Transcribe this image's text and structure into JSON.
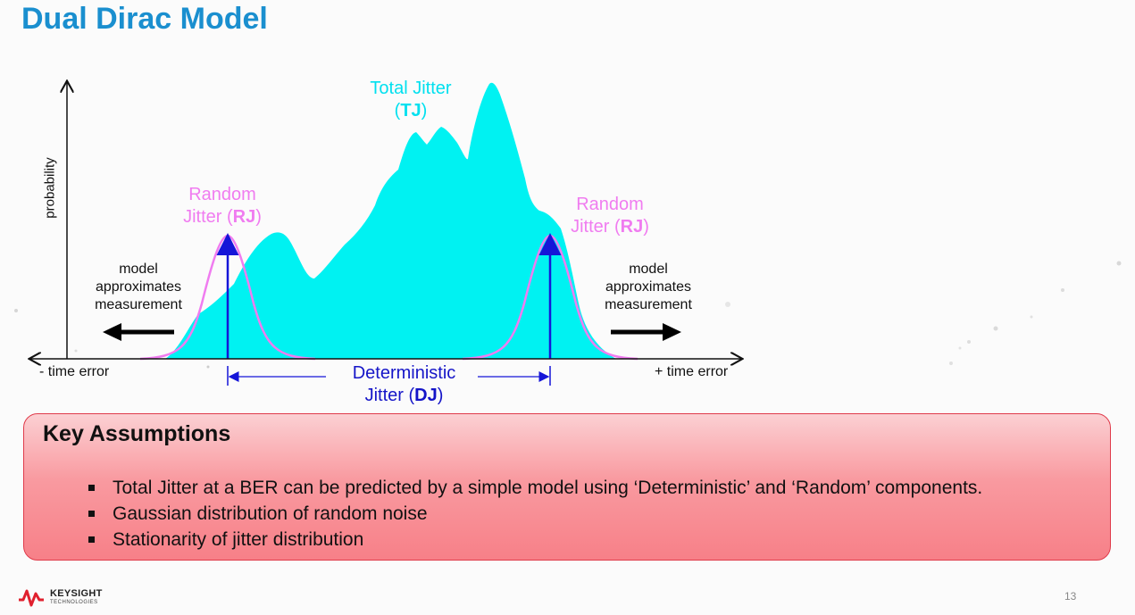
{
  "title": "Dual Dirac Model",
  "diagram": {
    "total_jitter": {
      "text": "Total Jitter",
      "open": "(",
      "acronym": "TJ",
      "close": ")"
    },
    "random_jitter_left": {
      "line1": "Random",
      "line2_prefix": "Jitter (",
      "acronym": "RJ",
      "close": ")"
    },
    "random_jitter_right": {
      "line1": "Random",
      "line2_prefix": "Jitter (",
      "acronym": "RJ",
      "close": ")"
    },
    "model_left": {
      "line1": "model",
      "line2": "approximates",
      "line3": "measurement"
    },
    "model_right": {
      "line1": "model",
      "line2": "approximates",
      "line3": "measurement"
    },
    "x_left_label": "- time error",
    "x_right_label": "+ time error",
    "y_label": "probability",
    "deterministic_jitter": {
      "line1": "Deterministic",
      "line2_prefix": "Jitter (",
      "acronym": "DJ",
      "close": ")"
    },
    "colors": {
      "tj_fill": "#00f2f2",
      "rj_curve": "#f07cf0",
      "dirac_arrow": "#1515d8",
      "title": "#1a8fcf"
    }
  },
  "assumptions": {
    "title": "Key Assumptions",
    "items": [
      "Total Jitter at a BER can be predicted by a simple model using ‘Deterministic’ and ‘Random’ components.",
      "Gaussian distribution of random noise",
      "Stationarity of jitter distribution"
    ]
  },
  "footer": {
    "logo_name": "KEYSIGHT",
    "logo_sub": "TECHNOLOGIES",
    "page_number": "13"
  }
}
